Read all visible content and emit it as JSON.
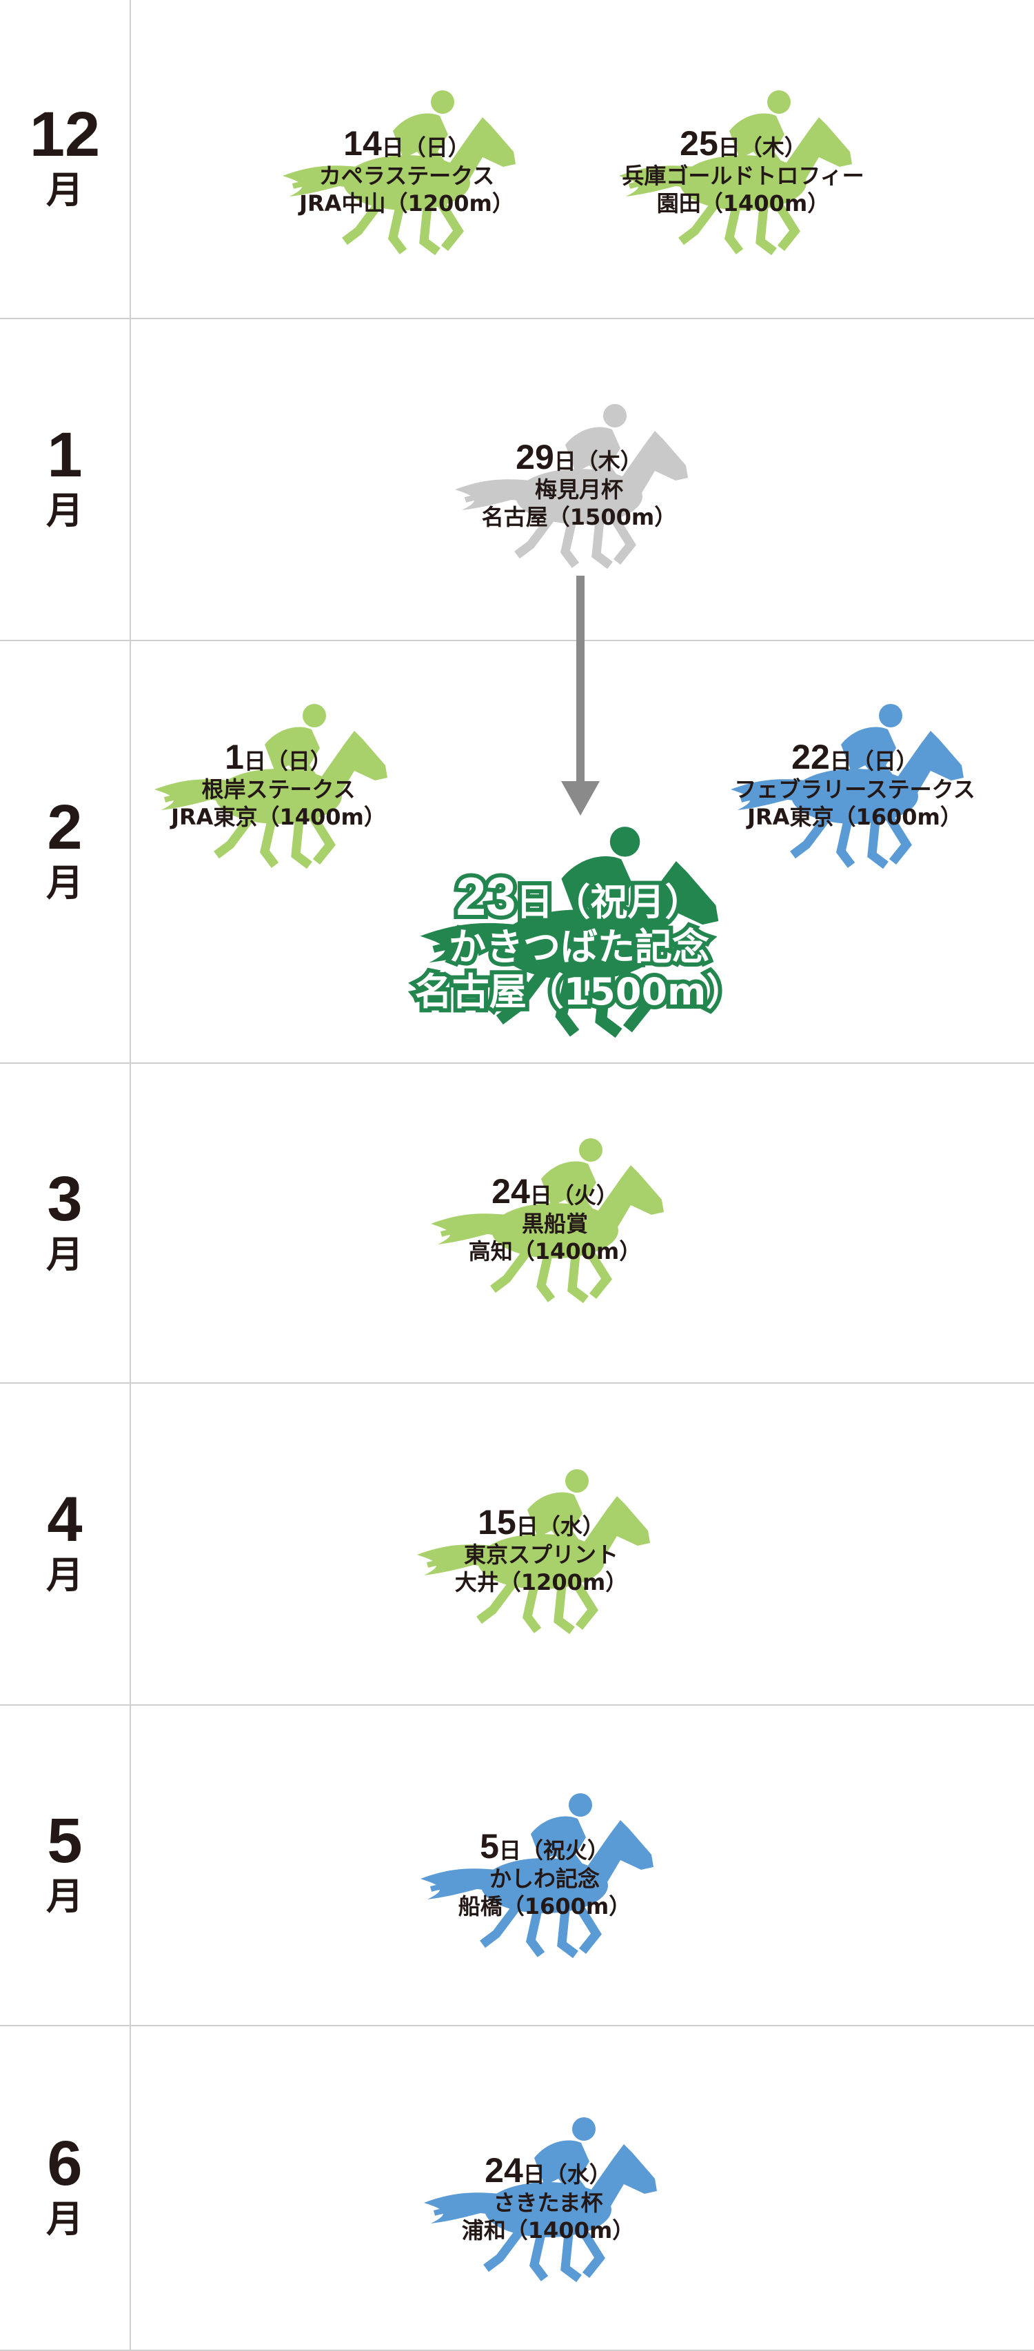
{
  "colors": {
    "jra_light_green": "#a9d16b",
    "gray": "#c9c9c9",
    "blue": "#5b9bd5",
    "dark_green": "#23864f"
  },
  "months": [
    {
      "num": "12",
      "unit": "月"
    },
    {
      "num": "1",
      "unit": "月"
    },
    {
      "num": "2",
      "unit": "月"
    },
    {
      "num": "3",
      "unit": "月"
    },
    {
      "num": "4",
      "unit": "月"
    },
    {
      "num": "5",
      "unit": "月"
    },
    {
      "num": "6",
      "unit": "月"
    }
  ],
  "events": [
    {
      "day": "14",
      "suffix": "日（日）",
      "name": "カペラステークス",
      "venue": "JRA中山（1200m）",
      "color": "#a9d16b",
      "icon": "racehorse-jockey-icon"
    },
    {
      "day": "25",
      "suffix": "日（木）",
      "name": "兵庫ゴールドトロフィー",
      "venue": "園田（1400m）",
      "color": "#a9d16b",
      "icon": "racehorse-jockey-icon"
    },
    {
      "day": "29",
      "suffix": "日（木）",
      "name": "梅見月杯",
      "venue": "名古屋（1500m）",
      "color": "#c9c9c9",
      "icon": "racehorse-jockey-icon"
    },
    {
      "day": "1",
      "suffix": "日（日）",
      "name": "根岸ステークス",
      "venue": "JRA東京（1400m）",
      "color": "#a9d16b",
      "icon": "racehorse-jockey-icon"
    },
    {
      "day": "22",
      "suffix": "日（日）",
      "name": "フェブラリーステークス",
      "venue": "JRA東京（1600m）",
      "color": "#5b9bd5",
      "icon": "racehorse-jockey-icon"
    },
    {
      "day": "23",
      "suffix": "日（祝月）",
      "name": "かきつばた記念",
      "venue": "名古屋（1500m）",
      "color": "#23864f",
      "icon": "racehorse-jockey-icon",
      "featured": true
    },
    {
      "day": "24",
      "suffix": "日（火）",
      "name": "黒船賞",
      "venue": "高知（1400m）",
      "color": "#a9d16b",
      "icon": "racehorse-jockey-icon"
    },
    {
      "day": "15",
      "suffix": "日（水）",
      "name": "東京スプリント",
      "venue": "大井（1200m）",
      "color": "#a9d16b",
      "icon": "racehorse-jockey-icon"
    },
    {
      "day": "5",
      "suffix": "日（祝火）",
      "name": "かしわ記念",
      "venue": "船橋（1600m）",
      "color": "#5b9bd5",
      "icon": "racehorse-jockey-icon"
    },
    {
      "day": "24",
      "suffix": "日（水）",
      "name": "さきたま杯",
      "venue": "浦和（1400m）",
      "color": "#5b9bd5",
      "icon": "racehorse-jockey-icon"
    }
  ],
  "arrow": {
    "icon": "down-arrow-icon",
    "color": "#8a8a8a"
  }
}
